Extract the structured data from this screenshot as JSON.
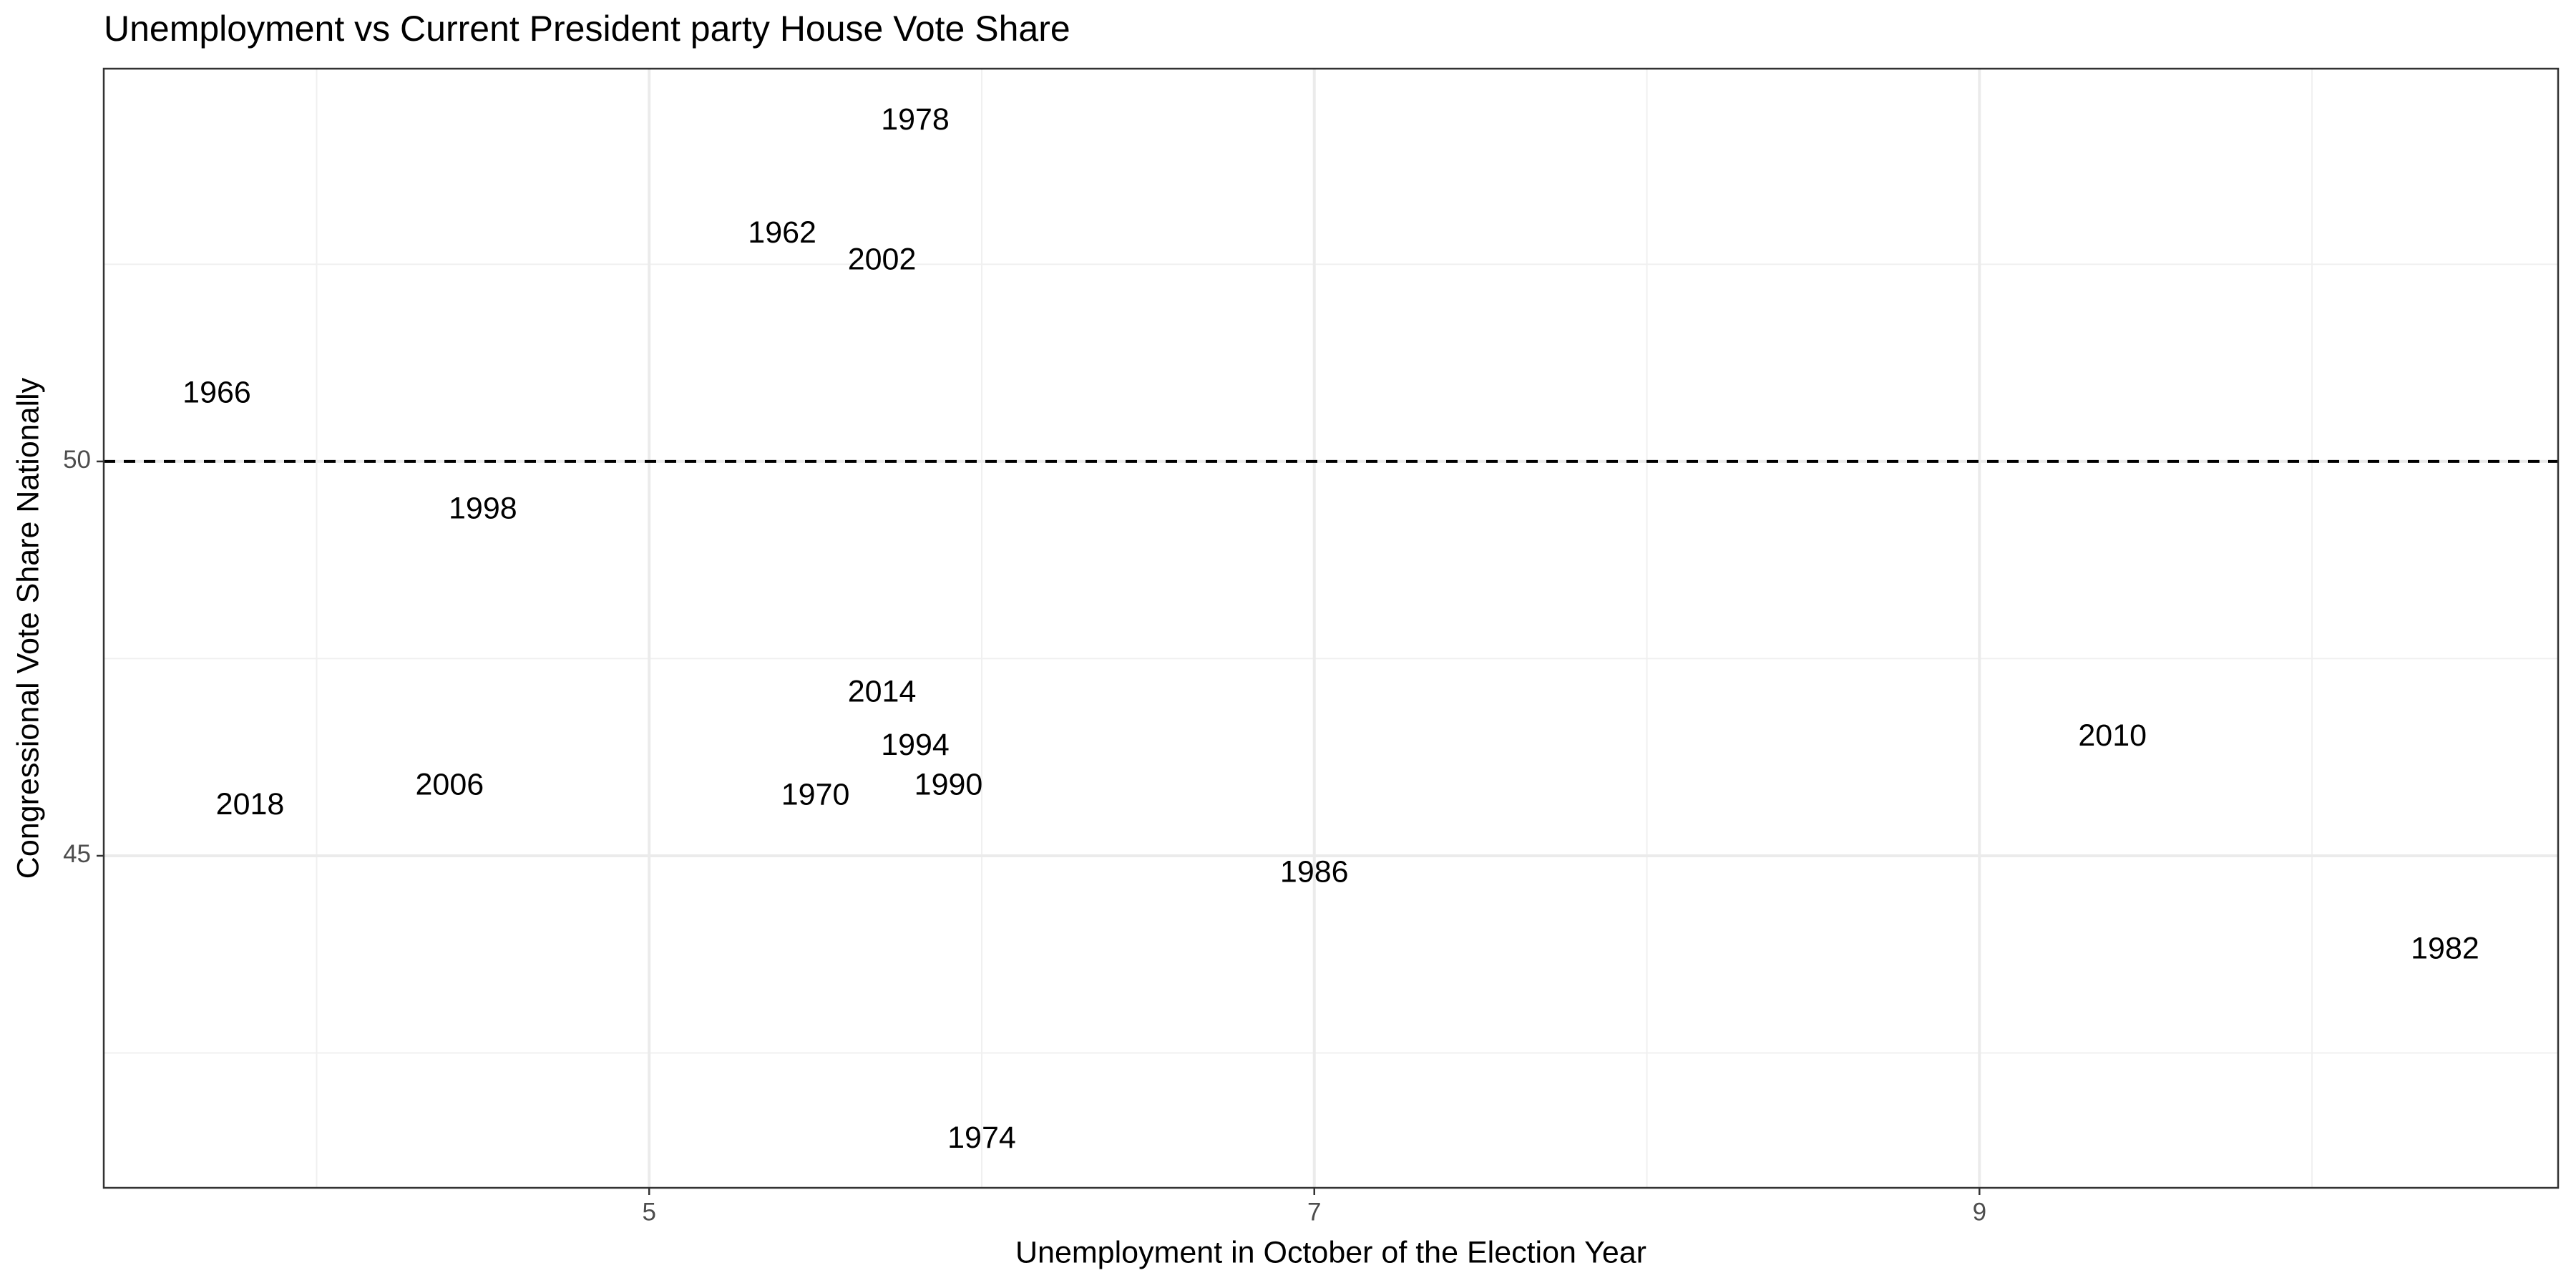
{
  "chart_data": {
    "type": "scatter",
    "title": "Unemployment vs Current President party House Vote Share",
    "x_label": "Unemployment in October of the Election Year",
    "y_label": "Congressional Vote Share Nationally",
    "labels": [
      "1978",
      "1962",
      "2002",
      "1966",
      "1998",
      "2014",
      "1994",
      "2010",
      "2006",
      "1990",
      "1970",
      "2018",
      "1986",
      "1982",
      "1974"
    ],
    "x": [
      5.8,
      5.4,
      5.7,
      3.7,
      4.5,
      5.7,
      5.8,
      9.4,
      4.4,
      5.9,
      5.5,
      3.8,
      7.0,
      10.4,
      6.0
    ],
    "values": [
      54.31,
      52.88,
      52.54,
      50.85,
      49.38,
      47.06,
      46.38,
      46.5,
      45.88,
      45.88,
      45.75,
      45.63,
      44.77,
      43.8,
      41.4
    ],
    "color": "#000000",
    "xlim": [
      3.36,
      10.74
    ],
    "xticks": [
      5,
      7,
      9
    ],
    "ylim": [
      40.79,
      54.98
    ],
    "yticks": [
      45,
      50
    ],
    "hline": 50,
    "grid": true
  }
}
